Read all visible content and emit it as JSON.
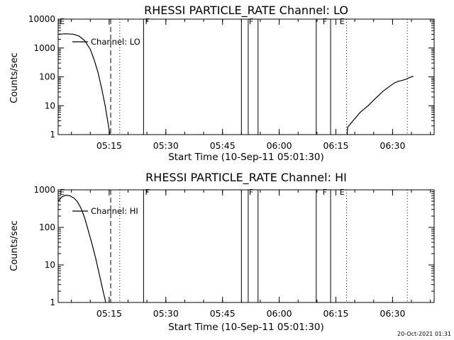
{
  "footer": {
    "timestamp": "20-Oct-2021 01:31"
  },
  "chart_data": [
    {
      "type": "line",
      "title": "RHESSI PARTICLE_RATE Channel: LO",
      "xlabel": "Start Time (10-Sep-11 05:01:30)",
      "ylabel": "Counts/sec",
      "yscale": "log",
      "xlim_minutes": [
        0,
        99.5
      ],
      "ylim": [
        1,
        10000
      ],
      "xticks": [
        {
          "min": 13.5,
          "label": "05:15"
        },
        {
          "min": 28.5,
          "label": "05:30"
        },
        {
          "min": 43.5,
          "label": "05:45"
        },
        {
          "min": 58.5,
          "label": "06:00"
        },
        {
          "min": 73.5,
          "label": "06:15"
        },
        {
          "min": 88.5,
          "label": "06:30"
        }
      ],
      "yticks": [
        {
          "value": 1,
          "label": "1"
        },
        {
          "value": 10,
          "label": "10"
        },
        {
          "value": 100,
          "label": "100"
        },
        {
          "value": 1000,
          "label": "1000"
        },
        {
          "value": 10000,
          "label": "10000"
        }
      ],
      "legend": "Channel: LO",
      "flags": [
        {
          "min": 0.2,
          "label": "E"
        },
        {
          "min": 22.8,
          "label": "F"
        },
        {
          "min": 50.3,
          "label": "F"
        },
        {
          "min": 69.8,
          "label": "F"
        },
        {
          "min": 74.3,
          "label": "E"
        }
      ],
      "markers": [
        {
          "min": 13.9,
          "style": "dashed"
        },
        {
          "min": 16.3,
          "style": "dotted"
        },
        {
          "min": 22.6,
          "style": "solid"
        },
        {
          "min": 48.5,
          "style": "solid"
        },
        {
          "min": 50.3,
          "style": "solid"
        },
        {
          "min": 52.9,
          "style": "solid"
        },
        {
          "min": 68.3,
          "style": "solid"
        },
        {
          "min": 72.1,
          "style": "solid"
        },
        {
          "min": 76.3,
          "style": "dotted"
        },
        {
          "min": 92.4,
          "style": "dotted"
        }
      ],
      "series": [
        {
          "name": "Channel: LO",
          "segments": [
            [
              [
                0,
                3000
              ],
              [
                2,
                3100
              ],
              [
                4,
                3000
              ],
              [
                5.5,
                2600
              ],
              [
                7,
                1800
              ],
              [
                8.5,
                900
              ],
              [
                9.5,
                400
              ],
              [
                10.5,
                150
              ],
              [
                11.5,
                40
              ],
              [
                12.5,
                9
              ],
              [
                13.2,
                2.5
              ],
              [
                13.7,
                1
              ]
            ],
            [
              [
                76.5,
                1
              ],
              [
                76.6,
                1.8
              ],
              [
                78,
                3
              ],
              [
                80,
                6
              ],
              [
                82,
                10
              ],
              [
                84,
                18
              ],
              [
                86,
                32
              ],
              [
                88,
                50
              ],
              [
                89,
                62
              ],
              [
                90,
                70
              ],
              [
                91,
                75
              ],
              [
                92,
                82
              ],
              [
                93,
                95
              ],
              [
                94,
                105
              ]
            ]
          ]
        }
      ]
    },
    {
      "type": "line",
      "title": "RHESSI PARTICLE_RATE Channel: HI",
      "xlabel": "Start Time (10-Sep-11 05:01:30)",
      "ylabel": "Counts/sec",
      "yscale": "log",
      "xlim_minutes": [
        0,
        99.5
      ],
      "ylim": [
        1,
        1000
      ],
      "xticks": [
        {
          "min": 13.5,
          "label": "05:15"
        },
        {
          "min": 28.5,
          "label": "05:30"
        },
        {
          "min": 43.5,
          "label": "05:45"
        },
        {
          "min": 58.5,
          "label": "06:00"
        },
        {
          "min": 73.5,
          "label": "06:15"
        },
        {
          "min": 88.5,
          "label": "06:30"
        }
      ],
      "yticks": [
        {
          "value": 1,
          "label": "1"
        },
        {
          "value": 10,
          "label": "10"
        },
        {
          "value": 100,
          "label": "100"
        },
        {
          "value": 1000,
          "label": "1000"
        }
      ],
      "legend": "Channel: HI",
      "flags": [
        {
          "min": 0.2,
          "label": "E"
        },
        {
          "min": 22.8,
          "label": "F"
        },
        {
          "min": 50.3,
          "label": "F"
        },
        {
          "min": 69.8,
          "label": "F"
        },
        {
          "min": 74.3,
          "label": "E"
        }
      ],
      "markers": [
        {
          "min": 13.9,
          "style": "dashed"
        },
        {
          "min": 16.3,
          "style": "dotted"
        },
        {
          "min": 22.6,
          "style": "solid"
        },
        {
          "min": 48.5,
          "style": "solid"
        },
        {
          "min": 50.3,
          "style": "solid"
        },
        {
          "min": 52.9,
          "style": "solid"
        },
        {
          "min": 68.3,
          "style": "solid"
        },
        {
          "min": 72.1,
          "style": "solid"
        },
        {
          "min": 76.3,
          "style": "dotted"
        },
        {
          "min": 92.4,
          "style": "dotted"
        }
      ],
      "series": [
        {
          "name": "Channel: HI",
          "segments": [
            [
              [
                0,
                500
              ],
              [
                1,
                650
              ],
              [
                2,
                720
              ],
              [
                3,
                700
              ],
              [
                4,
                620
              ],
              [
                5,
                500
              ],
              [
                6,
                330
              ],
              [
                7,
                180
              ],
              [
                8,
                80
              ],
              [
                9,
                35
              ],
              [
                10,
                14
              ],
              [
                11,
                5
              ],
              [
                12,
                1.8
              ],
              [
                12.6,
                1
              ]
            ]
          ]
        }
      ]
    }
  ]
}
